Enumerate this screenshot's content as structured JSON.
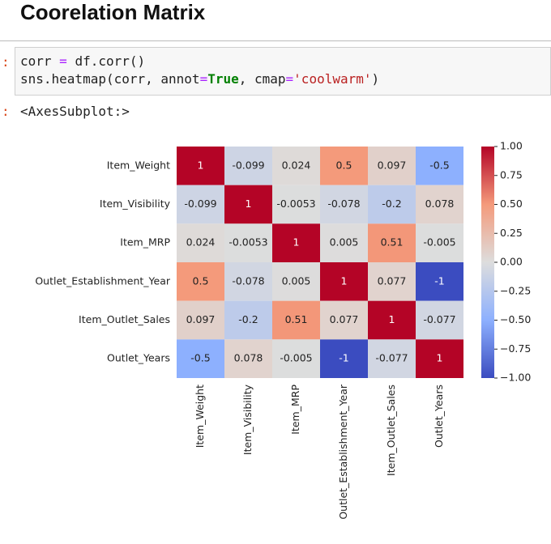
{
  "header": {
    "title": "Coorelation Matrix"
  },
  "prompts": [
    ":",
    ":"
  ],
  "code": {
    "lines": [
      [
        "corr ",
        "=",
        " df.corr()"
      ],
      [
        "sns.heatmap(corr, annot",
        "=",
        "True",
        ", cmap",
        "=",
        "'coolwarm'",
        ")"
      ]
    ]
  },
  "output": "<AxesSubplot:>",
  "chart_data": {
    "type": "heatmap",
    "cmap": "coolwarm",
    "rows": [
      "Item_Weight",
      "Item_Visibility",
      "Item_MRP",
      "Outlet_Establishment_Year",
      "Item_Outlet_Sales",
      "Outlet_Years"
    ],
    "columns": [
      "Item_Weight",
      "Item_Visibility",
      "Item_MRP",
      "Outlet_Establishment_Year",
      "Item_Outlet_Sales",
      "Outlet_Years"
    ],
    "values": [
      [
        1,
        -0.099,
        0.024,
        0.5,
        0.097,
        -0.5
      ],
      [
        -0.099,
        1,
        -0.0053,
        -0.078,
        -0.2,
        0.078
      ],
      [
        0.024,
        -0.0053,
        1,
        0.005,
        0.51,
        -0.005
      ],
      [
        0.5,
        -0.078,
        0.005,
        1,
        0.077,
        -1
      ],
      [
        0.097,
        -0.2,
        0.51,
        0.077,
        1,
        -0.077
      ],
      [
        -0.5,
        0.078,
        -0.005,
        -1,
        -0.077,
        1
      ]
    ],
    "clim": [
      -1,
      1
    ],
    "cticks": [
      {
        "value": 1,
        "label": "1.00"
      },
      {
        "value": 0.75,
        "label": "0.75"
      },
      {
        "value": 0.5,
        "label": "0.50"
      },
      {
        "value": 0.25,
        "label": "0.25"
      },
      {
        "value": 0,
        "label": "0.00"
      },
      {
        "value": -0.25,
        "label": "−0.25"
      },
      {
        "value": -0.5,
        "label": "−0.50"
      },
      {
        "value": -0.75,
        "label": "−0.75"
      },
      {
        "value": -1,
        "label": "−1.00"
      }
    ]
  }
}
